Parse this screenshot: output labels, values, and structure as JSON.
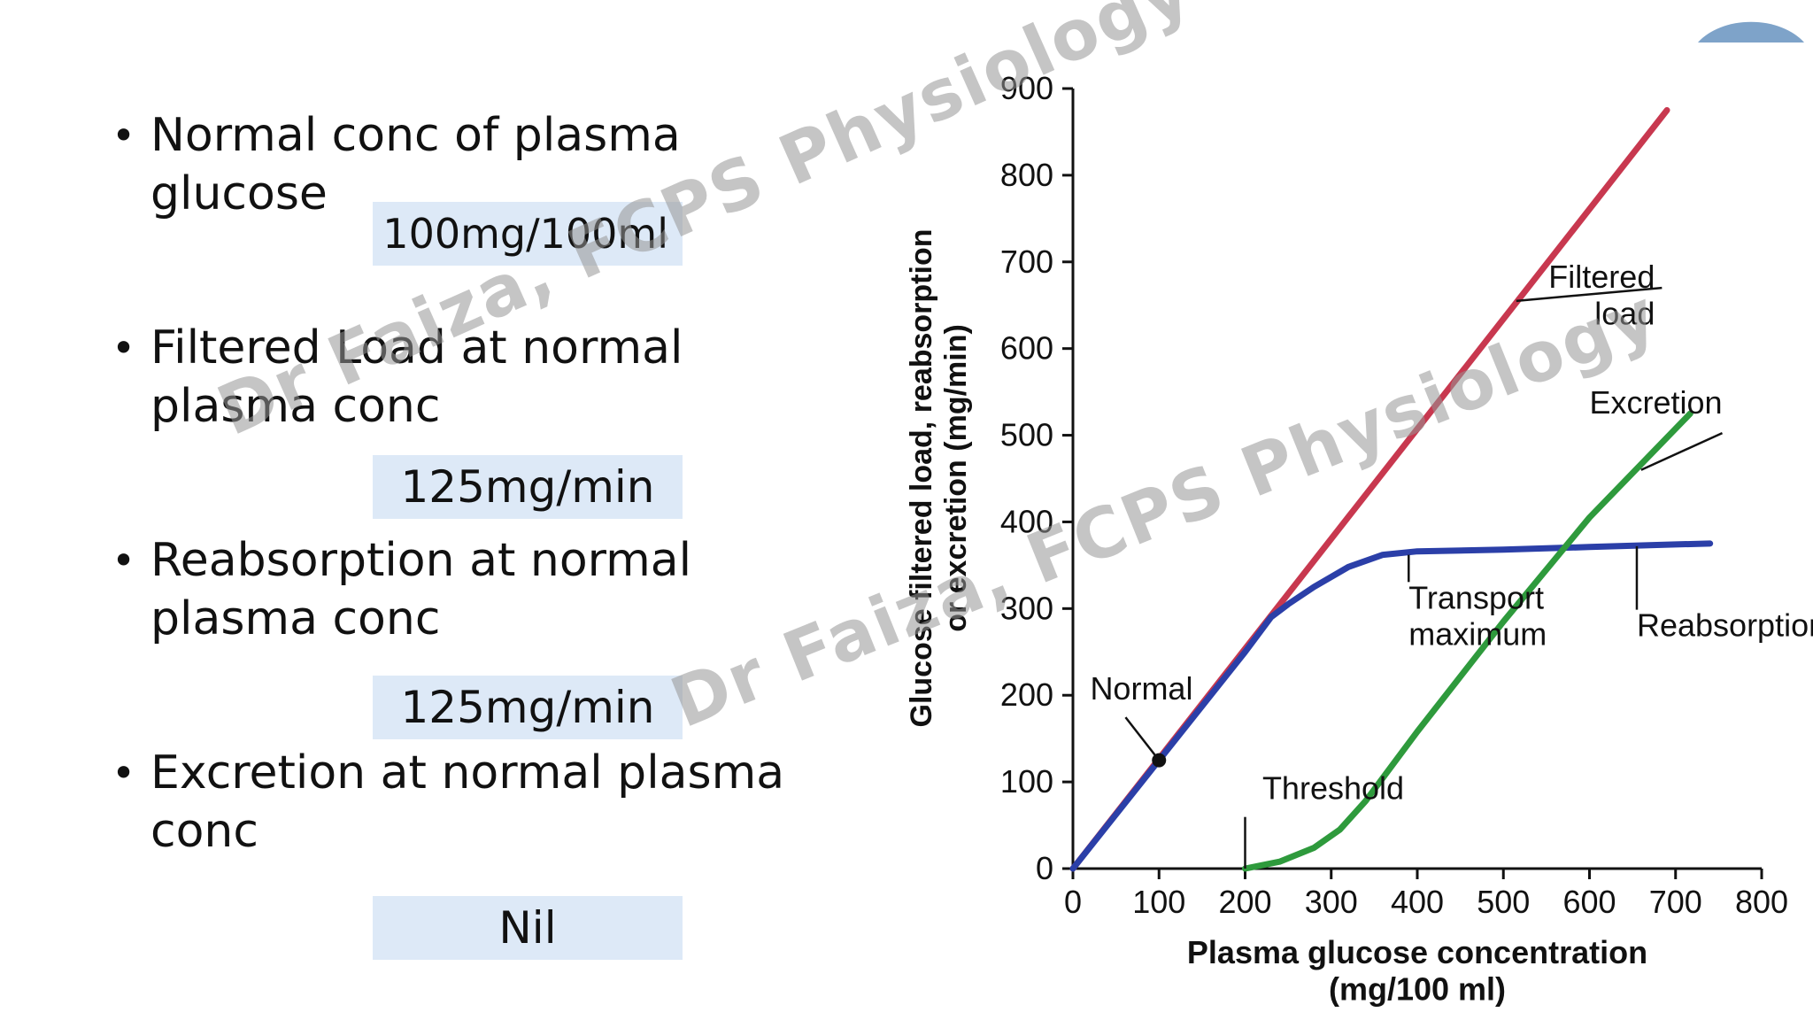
{
  "bullets": [
    {
      "text": "Normal conc of plasma\nglucose",
      "answer": "100mg/100ml"
    },
    {
      "text": "Filtered Load at normal\nplasma conc",
      "answer": "125mg/min"
    },
    {
      "text": "Reabsorption at normal\nplasma conc",
      "answer": "125mg/min"
    },
    {
      "text": "Excretion at normal plasma\nconc",
      "answer": "Nil"
    }
  ],
  "watermark": "Dr Faiza, FCPS Physiology",
  "colors": {
    "filtered": "#c8384f",
    "reabsorption": "#2b3fa8",
    "excretion": "#2e9a3c",
    "answer_bg": "#dde9f7",
    "corner": "#7ea3c9"
  },
  "chart_data": {
    "type": "line",
    "xlabel": "Plasma glucose concentration\n(mg/100 ml)",
    "ylabel": "Glucose filtered load, reabsorption\nor excretion (mg/min)",
    "xlim": [
      0,
      800
    ],
    "ylim": [
      0,
      900
    ],
    "xticks": [
      "0",
      "100",
      "200",
      "300",
      "400",
      "500",
      "600",
      "700",
      "800"
    ],
    "yticks": [
      "0",
      "100",
      "200",
      "300",
      "400",
      "500",
      "600",
      "700",
      "800",
      "900"
    ],
    "series": [
      {
        "name": "Filtered load",
        "color": "#c8384f",
        "points": [
          [
            0,
            0
          ],
          [
            690,
            875
          ]
        ]
      },
      {
        "name": "Reabsorption",
        "color": "#2b3fa8",
        "points": [
          [
            0,
            0
          ],
          [
            200,
            250
          ],
          [
            230,
            290
          ],
          [
            250,
            305
          ],
          [
            280,
            325
          ],
          [
            320,
            348
          ],
          [
            360,
            362
          ],
          [
            400,
            366
          ],
          [
            500,
            368
          ],
          [
            600,
            371
          ],
          [
            700,
            374
          ],
          [
            740,
            375
          ]
        ]
      },
      {
        "name": "Excretion",
        "color": "#2e9a3c",
        "points": [
          [
            200,
            0
          ],
          [
            240,
            8
          ],
          [
            280,
            24
          ],
          [
            310,
            45
          ],
          [
            340,
            78
          ],
          [
            370,
            118
          ],
          [
            400,
            158
          ],
          [
            500,
            285
          ],
          [
            600,
            405
          ],
          [
            717,
            525
          ]
        ]
      }
    ],
    "annotations": [
      {
        "text": "Filtered\nload",
        "x": 460,
        "y": 670,
        "point_to": [
          515,
          655
        ]
      },
      {
        "text": "Excretion",
        "x": 600,
        "y": 525,
        "point_to": [
          660,
          460
        ]
      },
      {
        "text": "Transport\nmaximum",
        "x": 390,
        "y": 300,
        "point_to": [
          390,
          362
        ]
      },
      {
        "text": "Reabsorption",
        "x": 655,
        "y": 268,
        "point_to": [
          655,
          372
        ]
      },
      {
        "text": "Normal",
        "x": 20,
        "y": 195,
        "point_to": [
          100,
          125
        ]
      },
      {
        "text": "Threshold",
        "x": 220,
        "y": 80,
        "point_to": [
          200,
          0
        ]
      }
    ],
    "marker": {
      "label": "Normal",
      "x": 100,
      "y": 125
    }
  }
}
